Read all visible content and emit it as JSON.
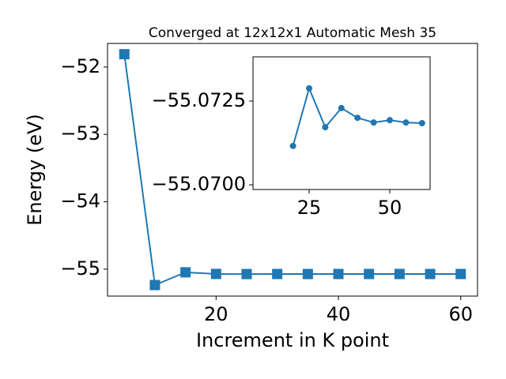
{
  "chart_data": [
    {
      "type": "line",
      "title": "Converged at 12x12x1 Automatic Mesh 35",
      "x_label": "Increment in K point",
      "y_label": "Energy (eV)",
      "x": [
        5,
        10,
        15,
        20,
        25,
        30,
        35,
        40,
        45,
        50,
        55,
        60
      ],
      "series": [
        {
          "color": "#1f77b4",
          "marker": "square",
          "values": [
            -51.81,
            -55.236,
            -55.047,
            -55.0712,
            -55.0729,
            -55.0717,
            -55.0723,
            -55.072,
            -55.0719,
            -55.0719,
            -55.0719,
            -55.0718
          ]
        }
      ],
      "xlim": [
        2.25,
        62.75
      ],
      "ylim": [
        -55.4,
        -51.65
      ],
      "xticks": [
        20,
        40,
        60
      ],
      "yticks": [
        {
          "value": -55,
          "label": "−55"
        },
        {
          "value": -54,
          "label": "−54"
        },
        {
          "value": -53,
          "label": "−53"
        },
        {
          "value": -52,
          "label": "−52"
        }
      ]
    },
    {
      "type": "line",
      "x": [
        20,
        25,
        30,
        35,
        40,
        45,
        50,
        55,
        60
      ],
      "series": [
        {
          "color": "#1f77b4",
          "marker": "circle",
          "values": [
            -55.07116,
            -55.07288,
            -55.07172,
            -55.07229,
            -55.072,
            -55.07186,
            -55.07193,
            -55.07186,
            -55.07184
          ]
        }
      ],
      "xlim": [
        7.6,
        62.5
      ],
      "ylim": [
        -55.06986,
        -55.07382
      ],
      "xticks": [
        25,
        50
      ],
      "yticks": [
        {
          "value": -55.07,
          "label": "−55.0700"
        },
        {
          "value": -55.0725,
          "label": "−55.0725"
        }
      ]
    }
  ]
}
